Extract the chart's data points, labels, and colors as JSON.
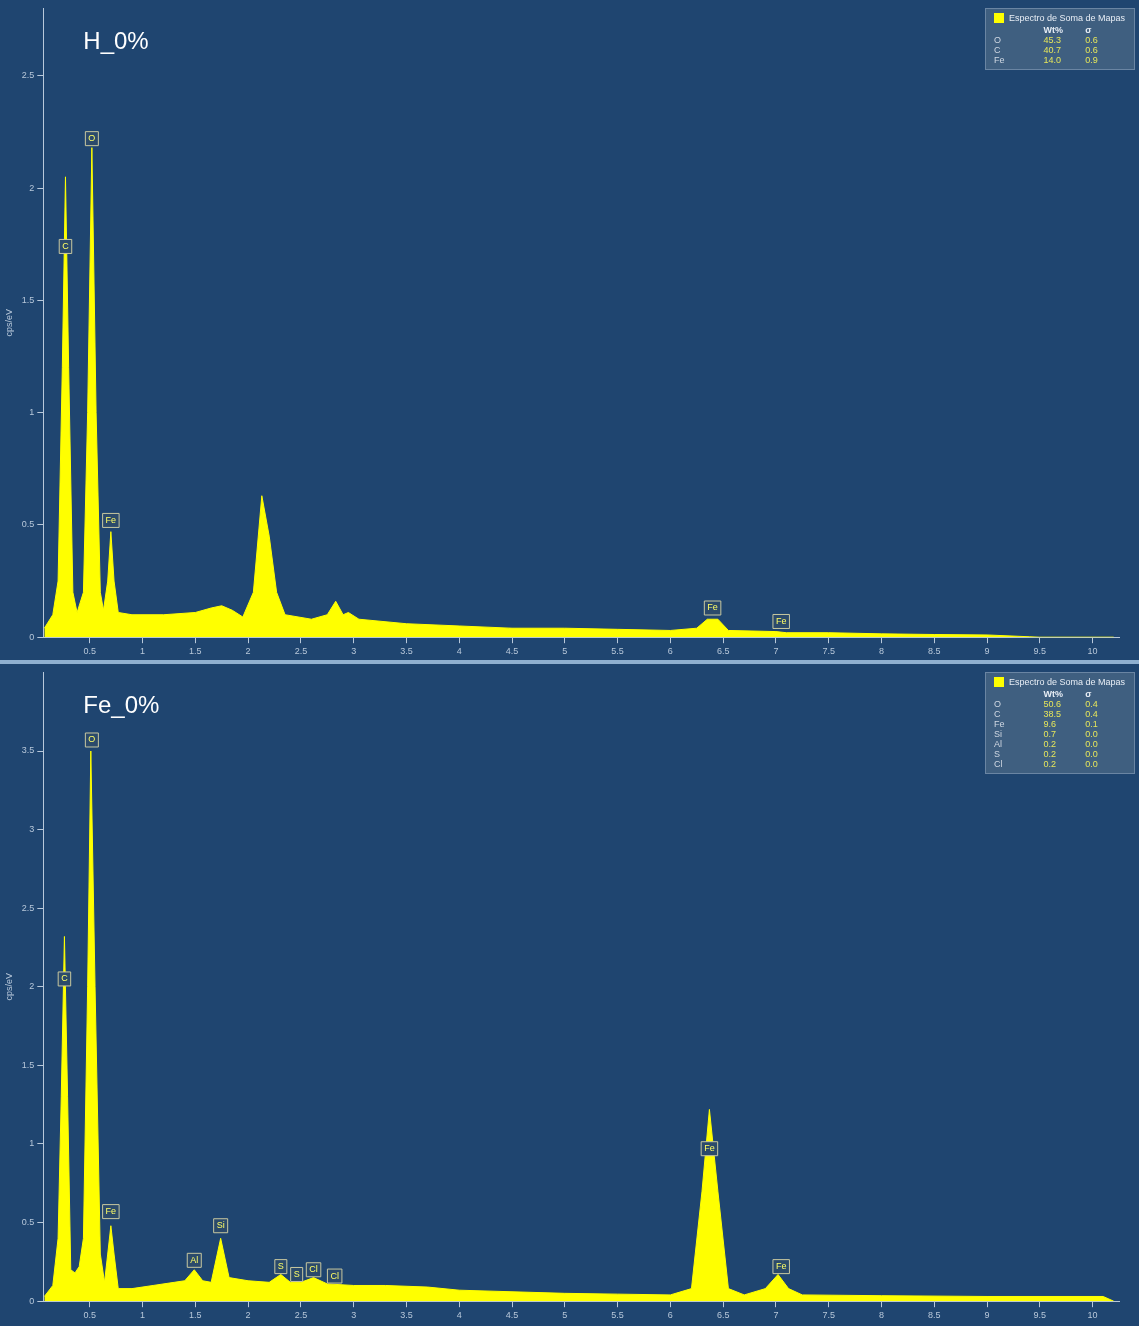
{
  "chart_data": [
    {
      "type": "area",
      "title": "H_0%",
      "ylabel": "cps/eV",
      "legend": "top right",
      "grid": false,
      "xlim": [
        0.06,
        10.25
      ],
      "xticks": [
        0.5,
        1,
        1.5,
        2,
        2.5,
        3,
        3.5,
        4,
        4.5,
        5,
        5.5,
        6,
        6.5,
        7,
        7.5,
        8,
        8.5,
        9,
        9.5,
        10
      ],
      "ylim": [
        0,
        2.8
      ],
      "yticks": [
        0,
        0.5,
        1,
        1.5,
        2,
        2.5
      ],
      "x": [
        0.07,
        0.15,
        0.2,
        0.24,
        0.27,
        0.3,
        0.34,
        0.38,
        0.44,
        0.48,
        0.52,
        0.56,
        0.6,
        0.63,
        0.67,
        0.7,
        0.73,
        0.77,
        0.9,
        1.2,
        1.5,
        1.65,
        1.75,
        1.85,
        1.95,
        2.05,
        2.13,
        2.2,
        2.27,
        2.35,
        2.6,
        2.75,
        2.83,
        2.9,
        2.95,
        3.05,
        3.5,
        4,
        4.5,
        5,
        5.5,
        6,
        6.25,
        6.35,
        6.45,
        6.55,
        7,
        7.1,
        7.5,
        8,
        8.5,
        9,
        9.4,
        9.5,
        10.2
      ],
      "series": [
        {
          "name": "Espectro de Soma de Mapas",
          "color": "#ffff00",
          "values": [
            0.04,
            0.1,
            0.25,
            1.2,
            2.05,
            1.2,
            0.2,
            0.11,
            0.2,
            1.0,
            2.18,
            1.0,
            0.2,
            0.12,
            0.25,
            0.47,
            0.25,
            0.11,
            0.1,
            0.1,
            0.11,
            0.13,
            0.14,
            0.12,
            0.09,
            0.2,
            0.63,
            0.45,
            0.2,
            0.1,
            0.08,
            0.1,
            0.16,
            0.1,
            0.11,
            0.08,
            0.06,
            0.05,
            0.04,
            0.04,
            0.035,
            0.03,
            0.04,
            0.08,
            0.08,
            0.03,
            0.025,
            0.02,
            0.02,
            0.015,
            0.012,
            0.01,
            0.002,
            0,
            0
          ]
        }
      ],
      "annotations": [
        "Wt%",
        "σ",
        "O",
        "45.3",
        "0.6",
        "C",
        "40.7",
        "0.6",
        "Fe",
        "14.0",
        "0.9",
        {
          "text": "C",
          "x": 0.27,
          "y": 1.74
        },
        {
          "text": "O",
          "x": 0.52,
          "y": 2.22
        },
        {
          "text": "Fe",
          "x": 0.7,
          "y": 0.52
        },
        {
          "text": "Fe",
          "x": 6.4,
          "y": 0.13
        },
        {
          "text": "Fe",
          "x": 7.05,
          "y": 0.07
        }
      ]
    },
    {
      "type": "area",
      "title": "Fe_0%",
      "ylabel": "cps/eV",
      "legend": "top right",
      "grid": false,
      "xlim": [
        0.06,
        10.25
      ],
      "xticks": [
        0.5,
        1,
        1.5,
        2,
        2.5,
        3,
        3.5,
        4,
        4.5,
        5,
        5.5,
        6,
        6.5,
        7,
        7.5,
        8,
        8.5,
        9,
        9.5,
        10
      ],
      "ylim": [
        0,
        4
      ],
      "yticks": [
        0,
        0.5,
        1,
        1.5,
        2,
        2.5,
        3,
        3.5
      ],
      "x": [
        0.07,
        0.15,
        0.2,
        0.23,
        0.26,
        0.29,
        0.32,
        0.36,
        0.4,
        0.44,
        0.48,
        0.51,
        0.55,
        0.6,
        0.64,
        0.67,
        0.7,
        0.73,
        0.77,
        0.9,
        1.1,
        1.3,
        1.4,
        1.49,
        1.57,
        1.65,
        1.74,
        1.82,
        2.0,
        2.2,
        2.31,
        2.4,
        2.5,
        2.62,
        2.75,
        3.0,
        3.3,
        3.7,
        4,
        4.5,
        5,
        5.5,
        6,
        6.2,
        6.3,
        6.37,
        6.45,
        6.55,
        6.7,
        6.9,
        7.02,
        7.12,
        7.25,
        8,
        9,
        10.1,
        10.2
      ],
      "series": [
        {
          "name": "Espectro de Soma de Mapas",
          "color": "#ffff00",
          "values": [
            0.03,
            0.1,
            0.4,
            1.3,
            2.32,
            1.3,
            0.2,
            0.18,
            0.22,
            0.4,
            2.0,
            3.5,
            2.0,
            0.3,
            0.12,
            0.3,
            0.48,
            0.3,
            0.08,
            0.08,
            0.1,
            0.12,
            0.13,
            0.2,
            0.13,
            0.12,
            0.4,
            0.15,
            0.13,
            0.12,
            0.17,
            0.12,
            0.12,
            0.15,
            0.11,
            0.1,
            0.1,
            0.09,
            0.07,
            0.06,
            0.05,
            0.045,
            0.04,
            0.08,
            0.7,
            1.22,
            0.7,
            0.08,
            0.04,
            0.08,
            0.17,
            0.08,
            0.04,
            0.035,
            0.03,
            0.03,
            0
          ]
        }
      ],
      "annotations": [
        "Wt%",
        "σ",
        "O",
        "50.6",
        "0.4",
        "C",
        "38.5",
        "0.4",
        "Fe",
        "9.6",
        "0.1",
        "Si",
        "0.7",
        "0.0",
        "Al",
        "0.2",
        "0.0",
        "S",
        "0.2",
        "0.0",
        "Cl",
        "0.2",
        "0.0",
        {
          "text": "C",
          "x": 0.26,
          "y": 2.05
        },
        {
          "text": "O",
          "x": 0.52,
          "y": 3.57
        },
        {
          "text": "Fe",
          "x": 0.7,
          "y": 0.57
        },
        {
          "text": "Al",
          "x": 1.49,
          "y": 0.26
        },
        {
          "text": "Si",
          "x": 1.74,
          "y": 0.48
        },
        {
          "text": "S",
          "x": 2.31,
          "y": 0.22
        },
        {
          "text": "S",
          "x": 2.46,
          "y": 0.17
        },
        {
          "text": "Cl",
          "x": 2.62,
          "y": 0.2
        },
        {
          "text": "Cl",
          "x": 2.82,
          "y": 0.16
        },
        {
          "text": "Fe",
          "x": 6.37,
          "y": 0.97
        },
        {
          "text": "Fe",
          "x": 7.05,
          "y": 0.22
        }
      ]
    }
  ]
}
